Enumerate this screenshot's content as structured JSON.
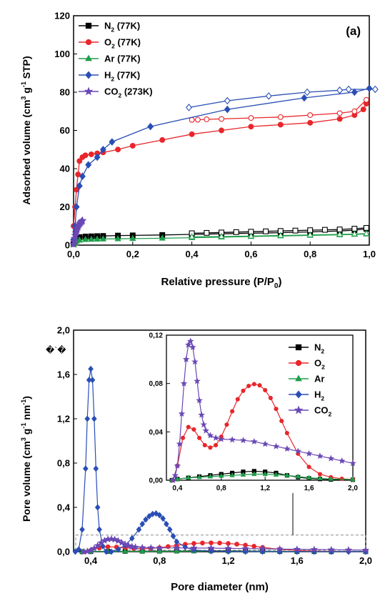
{
  "chart_data": [
    {
      "type": "line",
      "panel_label": "(a)",
      "xlabel": "Relative pressure (P/P",
      "xlabel_sub": "0",
      "xlabel_end": ")",
      "ylabel": "Adsorbed volume (cm",
      "ylabel_sup1": "3",
      "ylabel_mid": " g",
      "ylabel_sup2": "-1",
      "ylabel_end": " STP)",
      "xlim": [
        0,
        1.0
      ],
      "ylim": [
        0,
        120
      ],
      "xticks": [
        0.0,
        0.2,
        0.4,
        0.6,
        0.8,
        1.0
      ],
      "yticks": [
        0,
        20,
        40,
        60,
        80,
        100,
        120
      ],
      "xtick_labels": [
        "0,0",
        "0,2",
        "0,4",
        "0,6",
        "0,8",
        "1,0"
      ],
      "ytick_labels": [
        "0",
        "20",
        "40",
        "60",
        "80",
        "100",
        "120"
      ],
      "legend_position": "top-left",
      "series": [
        {
          "key": "n2",
          "name": "N",
          "sub": "2",
          "suffix": " (77K)",
          "color": "#000000",
          "marker": "square",
          "adsorption": {
            "x": [
              0.0,
              0.005,
              0.01,
              0.02,
              0.04,
              0.06,
              0.08,
              0.1,
              0.15,
              0.2,
              0.3,
              0.4,
              0.5,
              0.6,
              0.7,
              0.8,
              0.9,
              0.95,
              0.99
            ],
            "y": [
              0.5,
              2.0,
              3.5,
              4.2,
              4.5,
              4.6,
              4.7,
              4.8,
              5.0,
              5.1,
              5.3,
              5.6,
              5.9,
              6.2,
              6.5,
              6.9,
              7.4,
              7.8,
              8.5
            ]
          },
          "desorption": {
            "x": [
              0.99,
              0.95,
              0.9,
              0.85,
              0.8,
              0.75,
              0.7,
              0.65,
              0.6,
              0.55,
              0.5,
              0.45,
              0.4
            ],
            "y": [
              9.0,
              8.6,
              8.2,
              8.0,
              7.8,
              7.6,
              7.4,
              7.2,
              7.0,
              6.8,
              6.6,
              6.4,
              6.2
            ]
          }
        },
        {
          "key": "o2",
          "name": "O",
          "sub": "2",
          "suffix": " (77K)",
          "color": "#e8262b",
          "marker": "circle",
          "adsorption": {
            "x": [
              0.0,
              0.005,
              0.01,
              0.015,
              0.02,
              0.03,
              0.04,
              0.06,
              0.08,
              0.1,
              0.15,
              0.2,
              0.3,
              0.4,
              0.5,
              0.6,
              0.7,
              0.8,
              0.9,
              0.95,
              0.98,
              0.99
            ],
            "y": [
              10,
              20,
              29,
              37,
              44,
              46,
              47,
              47.5,
              48,
              48.5,
              50,
              52,
              55,
              58,
              60,
              62,
              63,
              64,
              66,
              68,
              71,
              74
            ]
          },
          "desorption": {
            "x": [
              0.99,
              0.95,
              0.9,
              0.8,
              0.7,
              0.6,
              0.5,
              0.45,
              0.42,
              0.4
            ],
            "y": [
              76,
              70,
              69,
              68,
              67,
              66.5,
              66,
              65.8,
              65.6,
              65.5
            ]
          }
        },
        {
          "key": "ar",
          "name": "Ar",
          "sub": "",
          "suffix": " (77K)",
          "color": "#1e9e4a",
          "marker": "triangle",
          "adsorption": {
            "x": [
              0.0,
              0.005,
              0.01,
              0.02,
              0.04,
              0.06,
              0.08,
              0.1,
              0.15,
              0.2,
              0.3,
              0.4,
              0.5,
              0.6,
              0.7,
              0.8,
              0.9,
              0.95,
              0.99
            ],
            "y": [
              0.3,
              1.0,
              2.0,
              2.6,
              2.9,
              3.0,
              3.1,
              3.2,
              3.3,
              3.4,
              3.6,
              3.9,
              4.2,
              4.5,
              4.8,
              5.1,
              5.4,
              5.6,
              5.8
            ]
          },
          "desorption": {
            "x": [
              0.99,
              0.95,
              0.9,
              0.8,
              0.7,
              0.6,
              0.5,
              0.4
            ],
            "y": [
              6.0,
              5.8,
              5.6,
              5.3,
              5.0,
              4.7,
              4.5,
              4.3
            ]
          }
        },
        {
          "key": "h2",
          "name": "H",
          "sub": "2",
          "suffix": " (77K)",
          "color": "#2a4eb5",
          "marker": "diamond",
          "adsorption": {
            "x": [
              0.0,
              0.005,
              0.01,
              0.02,
              0.03,
              0.05,
              0.08,
              0.1,
              0.13,
              0.26,
              0.52,
              0.78,
              0.95,
              1.0
            ],
            "y": [
              3,
              10,
              20,
              31,
              36,
              42,
              46,
              50,
              54,
              62,
              71,
              77,
              80,
              82
            ]
          },
          "desorption": {
            "x": [
              1.02,
              0.93,
              0.9,
              0.79,
              0.66,
              0.52,
              0.39
            ],
            "y": [
              81.5,
              81.5,
              81,
              80,
              78,
              75.5,
              72
            ]
          }
        },
        {
          "key": "co2",
          "name": "CO",
          "sub": "2",
          "suffix": " (273K)",
          "color": "#6a48b5",
          "marker": "star",
          "adsorption": {
            "x": [
              0.0,
              0.002,
              0.004,
              0.006,
              0.008,
              0.01,
              0.012,
              0.015,
              0.018,
              0.021,
              0.024,
              0.027,
              0.03
            ],
            "y": [
              0.5,
              2.0,
              3.5,
              5.0,
              6.3,
              7.5,
              8.5,
              9.5,
              10.5,
              11.2,
              11.8,
              12.3,
              12.8
            ]
          },
          "desorption": {
            "x": [],
            "y": []
          }
        }
      ]
    },
    {
      "type": "line",
      "panel_label": "",
      "xlabel": "Pore diameter (nm)",
      "ylabel": "Pore volume (cm",
      "ylabel_sup1": "3",
      "ylabel_mid": " g",
      "ylabel_sup2": "-1",
      "ylabel_mid2": " nm",
      "ylabel_sup3": "-1",
      "ylabel_end": ")",
      "xlim": [
        0.3,
        2.0
      ],
      "ylim": [
        0,
        2.0
      ],
      "xticks": [
        0.4,
        0.8,
        1.2,
        1.6,
        2.0
      ],
      "yticks": [
        0.0,
        0.4,
        0.8,
        1.2,
        1.6,
        2.0
      ],
      "xtick_labels": [
        "0,4",
        "0,8",
        "1,2",
        "1,6",
        "2,0"
      ],
      "ytick_labels": [
        "0,0",
        "0,4",
        "0,8",
        "1,2",
        "1,6",
        "2,0"
      ],
      "stray_text": "�`�",
      "inset": {
        "xlim": [
          0.3,
          2.0
        ],
        "ylim": [
          0,
          0.12
        ],
        "xticks": [
          0.4,
          0.8,
          1.2,
          1.6,
          2.0
        ],
        "yticks": [
          0.0,
          0.04,
          0.08,
          0.12
        ],
        "xtick_labels": [
          "0,4",
          "0,8",
          "1,2",
          "1,6",
          "2,0"
        ],
        "ytick_labels": [
          "0,00",
          "0,04",
          "0,08",
          "0,12"
        ],
        "zoom_region": {
          "x": [
            0.3,
            2.0
          ],
          "y": [
            0,
            0.15
          ]
        }
      },
      "legend_position": "top-right (inside inset)",
      "series": [
        {
          "key": "n2",
          "name": "N",
          "sub": "2",
          "color": "#000000",
          "marker": "square",
          "x": [
            0.35,
            0.4,
            0.5,
            0.6,
            0.7,
            0.8,
            0.9,
            1.0,
            1.1,
            1.2,
            1.3,
            1.4,
            1.5,
            1.6,
            1.7,
            1.8,
            2.0
          ],
          "y": [
            0.0,
            0.001,
            0.002,
            0.003,
            0.004,
            0.005,
            0.006,
            0.007,
            0.0075,
            0.007,
            0.006,
            0.004,
            0.0025,
            0.0015,
            0.001,
            0.0006,
            0.0004
          ]
        },
        {
          "key": "o2",
          "name": "O",
          "sub": "2",
          "color": "#e8262b",
          "marker": "circle",
          "x": [
            0.36,
            0.4,
            0.45,
            0.5,
            0.55,
            0.6,
            0.65,
            0.7,
            0.75,
            0.8,
            0.85,
            0.9,
            0.95,
            1.0,
            1.05,
            1.1,
            1.15,
            1.2,
            1.25,
            1.3,
            1.35,
            1.4,
            1.5,
            1.6,
            1.7,
            1.8,
            1.9,
            2.0
          ],
          "y": [
            0.0,
            0.012,
            0.035,
            0.044,
            0.042,
            0.035,
            0.029,
            0.027,
            0.029,
            0.036,
            0.046,
            0.057,
            0.067,
            0.074,
            0.078,
            0.0795,
            0.0785,
            0.0745,
            0.068,
            0.059,
            0.049,
            0.039,
            0.022,
            0.011,
            0.005,
            0.0025,
            0.0012,
            0.0006
          ]
        },
        {
          "key": "ar",
          "name": "Ar",
          "sub": "",
          "color": "#1e9e4a",
          "marker": "triangle",
          "x": [
            0.35,
            0.4,
            0.5,
            0.6,
            0.7,
            0.8,
            0.9,
            1.0,
            1.1,
            1.2,
            1.3,
            1.4,
            1.5,
            1.6,
            1.7,
            1.8,
            2.0
          ],
          "y": [
            0.0,
            0.001,
            0.002,
            0.0025,
            0.003,
            0.0035,
            0.004,
            0.0045,
            0.005,
            0.005,
            0.0045,
            0.004,
            0.003,
            0.002,
            0.0015,
            0.001,
            0.0006
          ]
        },
        {
          "key": "h2",
          "name": "H",
          "sub": "2",
          "color": "#2a4eb5",
          "marker": "diamond",
          "x": [
            0.31,
            0.33,
            0.35,
            0.37,
            0.38,
            0.39,
            0.4,
            0.41,
            0.42,
            0.43,
            0.44,
            0.45,
            0.47,
            0.49,
            0.52,
            0.56,
            0.6,
            0.64,
            0.68,
            0.7,
            0.72,
            0.74,
            0.76,
            0.78,
            0.8,
            0.82,
            0.84,
            0.86,
            0.88,
            0.9,
            0.95,
            1.0,
            1.1,
            1.2,
            1.3,
            1.4,
            1.5,
            1.6,
            1.7,
            1.8,
            1.9,
            2.0
          ],
          "y": [
            0.0,
            0.02,
            0.2,
            0.75,
            1.2,
            1.55,
            1.65,
            1.55,
            1.2,
            0.75,
            0.4,
            0.2,
            0.05,
            0.0,
            0.0,
            0.02,
            0.06,
            0.12,
            0.2,
            0.25,
            0.29,
            0.32,
            0.34,
            0.345,
            0.33,
            0.3,
            0.25,
            0.2,
            0.14,
            0.09,
            0.04,
            0.015,
            0.005,
            0.002,
            0.001,
            0.0005,
            0.0003,
            0.0002,
            0.0001,
            0.0001,
            0.0,
            0.0
          ]
        },
        {
          "key": "co2",
          "name": "CO",
          "sub": "2",
          "color": "#6a48b5",
          "marker": "star",
          "x": [
            0.36,
            0.38,
            0.4,
            0.42,
            0.44,
            0.46,
            0.48,
            0.5,
            0.52,
            0.54,
            0.56,
            0.58,
            0.6,
            0.62,
            0.64,
            0.66,
            0.7,
            0.75,
            0.8,
            0.9,
            1.0,
            1.1,
            1.2,
            1.3,
            1.4,
            1.5,
            1.6,
            1.7,
            1.8,
            1.9,
            2.0
          ],
          "y": [
            0.0,
            0.004,
            0.012,
            0.03,
            0.055,
            0.08,
            0.1,
            0.112,
            0.115,
            0.11,
            0.098,
            0.082,
            0.066,
            0.054,
            0.046,
            0.041,
            0.037,
            0.035,
            0.034,
            0.0335,
            0.033,
            0.032,
            0.03,
            0.028,
            0.026,
            0.024,
            0.022,
            0.02,
            0.018,
            0.016,
            0.014
          ]
        }
      ]
    }
  ]
}
